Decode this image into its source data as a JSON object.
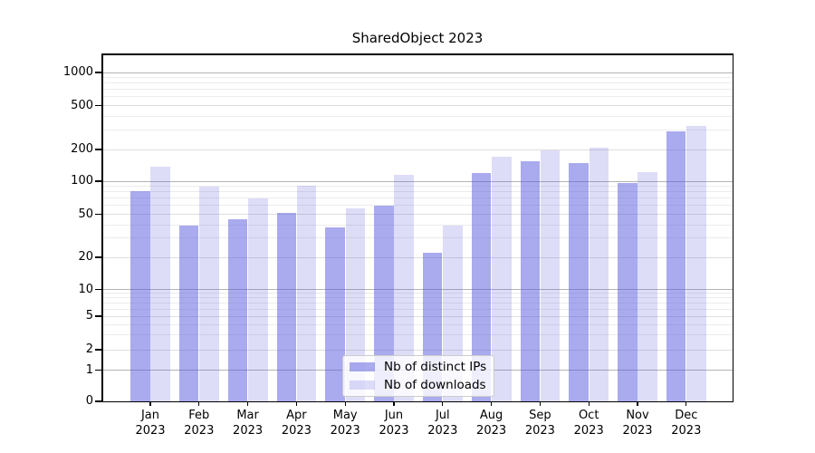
{
  "chart_data": {
    "type": "bar",
    "title": "SharedObject 2023",
    "categories": [
      "Jan 2023",
      "Feb 2023",
      "Mar 2023",
      "Apr 2023",
      "May 2023",
      "Jun 2023",
      "Jul 2023",
      "Aug 2023",
      "Sep 2023",
      "Oct 2023",
      "Nov 2023",
      "Dec 2023"
    ],
    "series": [
      {
        "name": "Nb of distinct IPs",
        "color": "rgba(85,85,221,0.5)",
        "values": [
          81,
          39,
          45,
          51,
          38,
          60,
          22,
          120,
          155,
          150,
          96,
          292
        ]
      },
      {
        "name": "Nb of downloads",
        "color": "rgba(85,85,221,0.2)",
        "values": [
          137,
          89,
          70,
          91,
          57,
          115,
          39,
          170,
          196,
          208,
          121,
          327
        ]
      }
    ],
    "yscale": "symlog",
    "yticks": [
      0,
      1,
      2,
      5,
      10,
      20,
      50,
      100,
      200,
      500,
      1000
    ],
    "ylim": [
      0,
      1400
    ],
    "xlabel": "",
    "ylabel": "",
    "grid": true,
    "legend_location": "lower center",
    "colors": {
      "major_gridline": "#b3b3b3",
      "labeled_gridline": "#dedede",
      "minor_gridline": "#ececec",
      "axis": "#000000"
    }
  }
}
